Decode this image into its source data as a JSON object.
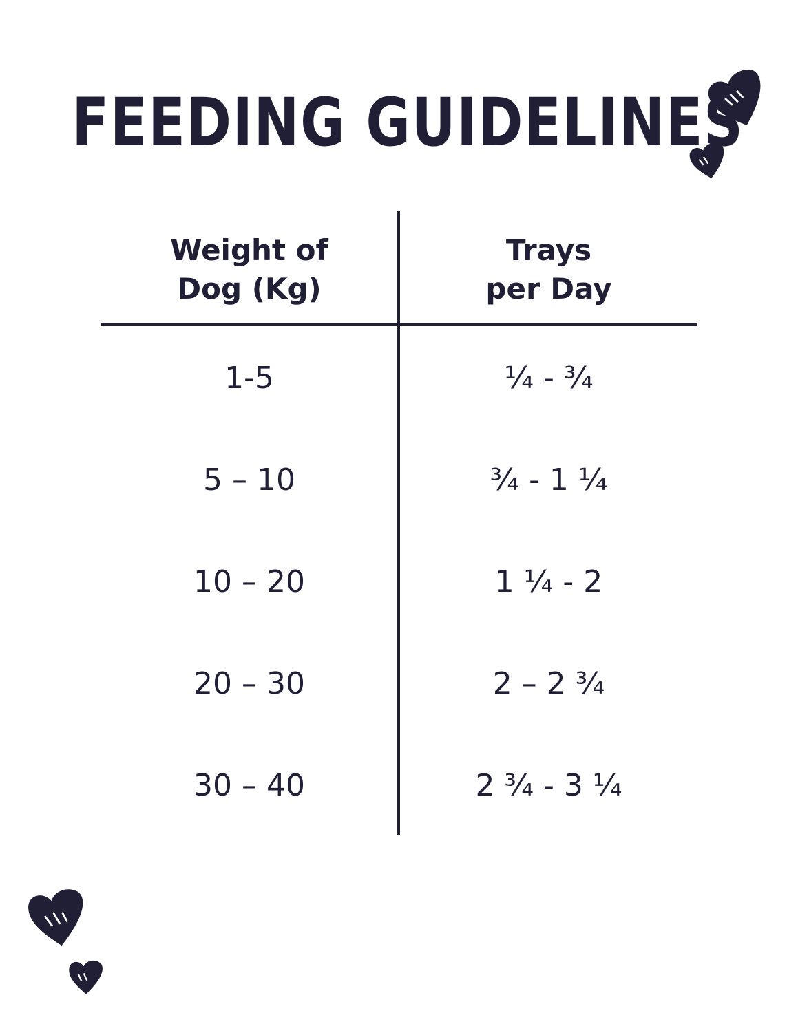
{
  "title": "FEEDING GUIDELINES",
  "table": {
    "headers": {
      "weight_line1": "Weight of",
      "weight_line2": "Dog (Kg)",
      "trays_line1": "Trays",
      "trays_line2": "per Day"
    },
    "rows": [
      {
        "weight": "1-5",
        "trays": "¼ - ¾"
      },
      {
        "weight": "5 – 10",
        "trays": "¾ - 1 ¼"
      },
      {
        "weight": "10 – 20",
        "trays": "1 ¼ - 2"
      },
      {
        "weight": "20 – 30",
        "trays": "2 – 2 ¾"
      },
      {
        "weight": "30 – 40",
        "trays": "2 ¾ - 3 ¼"
      }
    ]
  },
  "decorations": [
    "heart-icon",
    "heart-icon",
    "heart-icon",
    "heart-icon"
  ],
  "colors": {
    "ink": "#211f36",
    "background": "#ffffff"
  }
}
